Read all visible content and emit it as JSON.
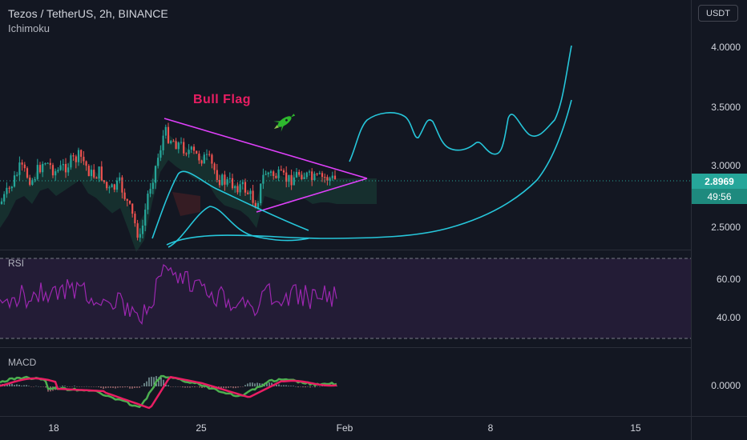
{
  "legend": {
    "symbol": "Tezos / TetherUS, 2h, BINANCE",
    "indicator": "Ichimoku"
  },
  "currency": "USDT",
  "price_axis": [
    "4.0000",
    "3.5000",
    "3.0000",
    "2.5000"
  ],
  "last_price": "2.8969",
  "countdown": "49:56",
  "annotation": "Bull Flag",
  "rsi": {
    "label": "RSI",
    "axis": [
      "60.00",
      "40.00"
    ]
  },
  "macd": {
    "label": "MACD",
    "axis": [
      "0.0000"
    ]
  },
  "time_axis": [
    "18",
    "25",
    "Feb",
    "8",
    "15"
  ],
  "colors": {
    "background": "#131722",
    "up": "#26a69a",
    "down": "#ef5350",
    "projection": "#26c6da",
    "flag_lines": "#e040fb",
    "annotation": "#e91e63",
    "rsi_line": "#9c27b0",
    "macd_line": "#4caf50",
    "signal_line": "#e91e63"
  },
  "icons": {
    "rocket": "rocket-icon"
  }
}
